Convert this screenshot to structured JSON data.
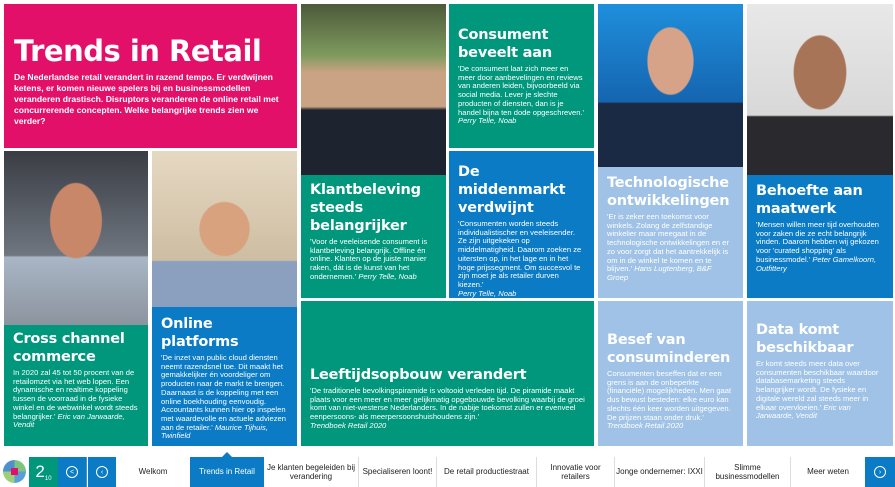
{
  "intro": {
    "title": "Trends in Retail",
    "text": "De Nederlandse retail verandert in razend tempo. Er verdwijnen ketens, er komen nieuwe spelers bij en businessmodellen veranderen drastisch. Disruptors veranderen de online retail met concurrerende concepten. Welke belangrijke trends zien we verder?"
  },
  "tiles": {
    "consument": {
      "title": "Consument beveelt aan",
      "text": "'De consument laat zich meer en meer door aanbevelingen en reviews van anderen leiden, bijvoorbeeld via social media. Lever je slechte producten of diensten, dan is je handel bijna ten dode opgeschreven.'",
      "source": "Perry Telle, Noab"
    },
    "klantbeleving": {
      "title": "Klantbeleving steeds belangrijker",
      "text": "'Voor de veeleisende consument is klantbeleving belangrijk. Offline én online. Klanten op de juiste manier raken, dát is de kunst van het ondernemen.'",
      "source": "Perry Telle, Noab"
    },
    "middenmarkt": {
      "title": "De middenmarkt verdwijnt",
      "text": "'Consumenten worden steeds individualistischer en veeleisender. Ze zijn uitgekeken op middelmatigheid. Daarom zoeken ze uitersten op, in het lage en in het hoge prijssegment. Om succesvol te zijn moet je als retailer durven kiezen.'",
      "source": "Perry Telle, Noab"
    },
    "technologie": {
      "title": "Technologische ontwikkelingen",
      "text": "'Er is zeker een toekomst voor winkels. Zolang de zelfstandige winkelier maar meegaat in de technologische ontwikkelingen en er zo voor zorgt dat het aantrekkelijk is om in de winkel te komen en te blijven.'",
      "source": "Hans Lugtenberg, B&F Groep"
    },
    "maatwerk": {
      "title": "Behoefte aan maatwerk",
      "text": "'Mensen willen meer tijd overhouden voor zaken die ze echt belangrijk vinden. Daarom hebben wij gekozen voor 'curated shopping' als businessmodel.'",
      "source": "Peter Gamelkoorn, Outfittery"
    },
    "crosschannel": {
      "title": "Cross channel commerce",
      "text": "In 2020 zal 45 tot 50 procent van de retailomzet via het web lopen. Een dynamische en realtime koppeling tussen de voorraad in de fysieke winkel en de webwinkel wordt steeds belangrijker.'",
      "source": "Eric van Jarwaarde, Vendit"
    },
    "online": {
      "title": "Online platforms",
      "text": "'De inzet van public cloud diensten neemt razendsnel toe. Dit maakt het gemakkelijker én voordeliger om producten naar de markt te brengen. Daarnaast is de koppeling met een online boekhouding eenvoudig. Accountants kunnen hier op inspelen met waardevolle en actuele adviezen aan de retailer.'",
      "source": "Maurice Tijhuis, Twinfield"
    },
    "leeftijd": {
      "title": "Leeftijdsopbouw verandert",
      "text": "'De traditionele bevolkingspiramide is voltooid verleden tijd. De piramide maakt plaats voor een meer en meer gelijkmatig opgebouwde bevolking waarbij de groei komt van niet-westerse Nederlanders. In de nabije toekomst zullen er evenveel eenpersoons- als meerpersoonshuishoudens zijn.'",
      "source": "Trendboek Retail 2020"
    },
    "besef": {
      "title": "Besef van consuminderen",
      "text": "Consumenten beseffen dat er een grens is aan de onbeperkte (financiële) mogelijkheden. Men gaat dus bewust besteden: elke euro kan slechts één keer worden uitgegeven. De prijzen staan onder druk.'",
      "source": "Trendboek Retail 2020"
    },
    "data": {
      "title": "Data komt beschikbaar",
      "text": "Er komt steeds meer data over consumenten beschikbaar waardoor databasemarketing steeds belangrijker wordt. De fysieke en digitale wereld zal steeds meer in elkaar overvloeien.'",
      "source": "Eric van Jarwaarde, Vendit"
    }
  },
  "nav": {
    "page": "2",
    "total": "10",
    "tabs": [
      "Welkom",
      "Trends in Retail",
      "Je klanten begeleiden bij verandering",
      "Specialiseren loont!",
      "De retail productiestraat",
      "Innovatie voor retailers",
      "Jonge ondernemer: IXXI",
      "Slimme businessmodellen",
      "Meer weten"
    ],
    "active": 1
  },
  "colors": {
    "pink": "#e3106a",
    "green": "#00977c",
    "blue": "#0a7bc4",
    "light_blue": "#9fc2e6"
  }
}
